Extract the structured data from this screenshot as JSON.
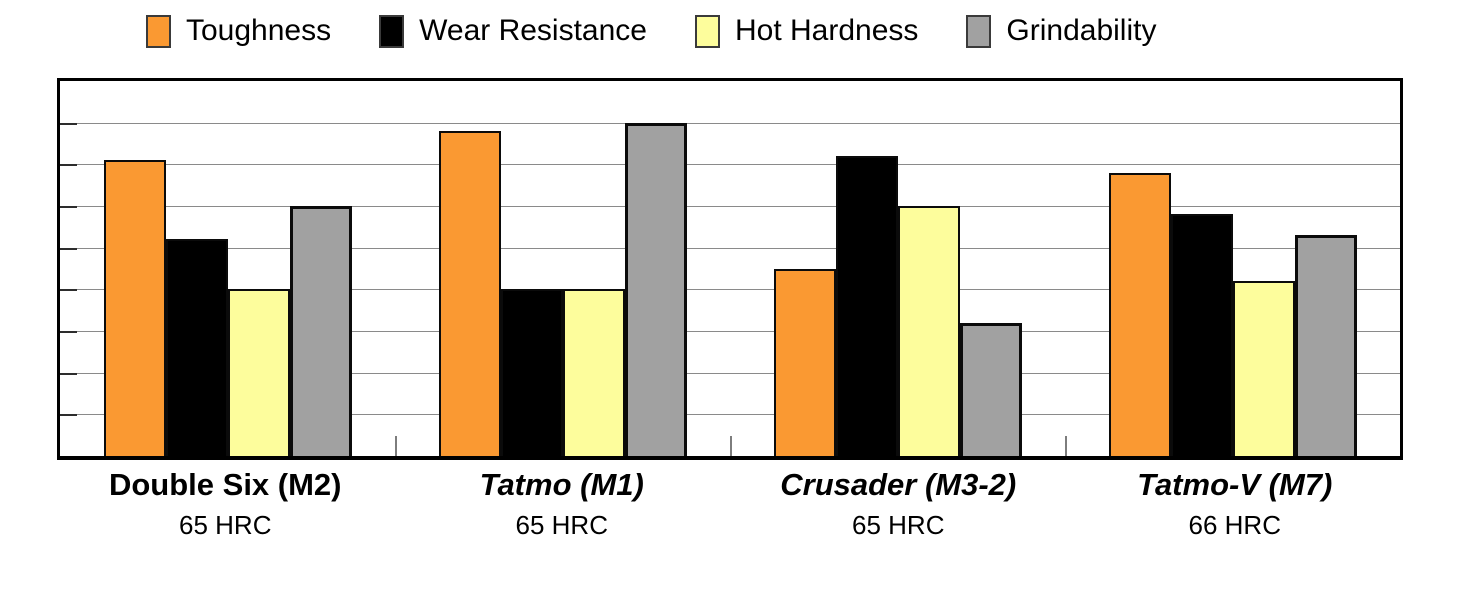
{
  "chart_data": {
    "type": "bar",
    "title": "",
    "xlabel": "",
    "ylabel": "",
    "categories": [
      "Double Six (M2)",
      "Tatmo (M1)",
      "Crusader (M3-2)",
      "Tatmo-V (M7)"
    ],
    "category_subtitles": [
      "65 HRC",
      "65 HRC",
      "65 HRC",
      "66 HRC"
    ],
    "category_label_styles": [
      "bold",
      "bold-italic",
      "bold-italic",
      "bold-italic"
    ],
    "series": [
      {
        "name": "Toughness",
        "color": "#FA9932",
        "values": [
          7.1,
          7.8,
          4.5,
          6.8
        ]
      },
      {
        "name": "Wear Resistance",
        "color": "#000000",
        "values": [
          5.2,
          4.0,
          7.2,
          5.8
        ]
      },
      {
        "name": "Hot Hardness",
        "color": "#FDFD9C",
        "values": [
          4.0,
          4.0,
          6.0,
          4.2
        ]
      },
      {
        "name": "Grindability",
        "color": "#A1A1A1",
        "values": [
          6.0,
          8.0,
          3.2,
          5.3
        ]
      }
    ],
    "ylim": [
      0,
      9
    ],
    "gridline_divisions": 9,
    "y_axis_tick_labels_visible": false,
    "grid": true,
    "legend_position": "top",
    "legend_items": [
      {
        "label": "Toughness",
        "color": "#FA9932"
      },
      {
        "label": "Wear Resistance",
        "color": "#000000"
      },
      {
        "label": "Hot Hardness",
        "color": "#FDFD9C"
      },
      {
        "label": "Grindability",
        "color": "#A1A1A1"
      }
    ]
  }
}
